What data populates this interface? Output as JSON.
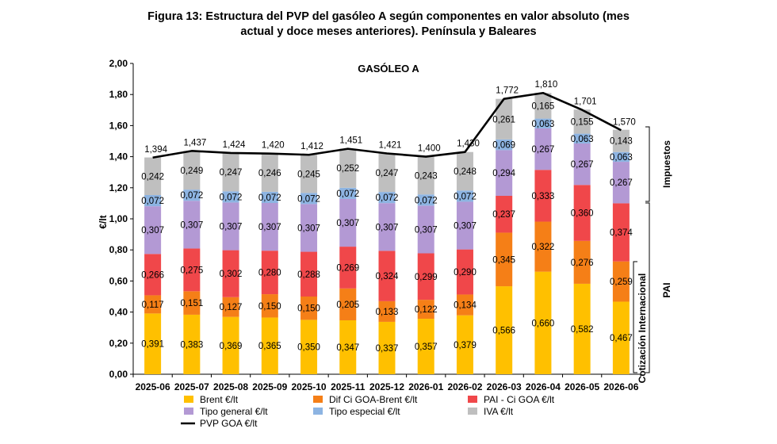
{
  "page_title_line1": "Figura 13: Estructura del PVP del gasóleo A según componentes en valor absoluto (mes",
  "page_title_line2": "actual y doce meses anteriores). Península y Baleares",
  "chart_data": {
    "type": "bar",
    "stacked": true,
    "title": "GASÓLEO A",
    "ylabel": "€/lt",
    "ylim": [
      0,
      2.0
    ],
    "ytick_step": 0.2,
    "grid": false,
    "legend_position": "bottom",
    "side_labels": {
      "upper": "Impuestos",
      "lower": "PAI",
      "inner": "Cotización Internacional"
    },
    "categories": [
      "2025-06",
      "2025-07",
      "2025-08",
      "2025-09",
      "2025-10",
      "2025-11",
      "2025-12",
      "2026-01",
      "2026-02",
      "2026-03",
      "2026-04",
      "2026-05",
      "2026-06"
    ],
    "series": [
      {
        "name": "Brent €/lt",
        "color": "#FFC000",
        "values": [
          0.391,
          0.383,
          0.369,
          0.365,
          0.35,
          0.347,
          0.337,
          0.357,
          0.379,
          0.566,
          0.66,
          0.582,
          0.467
        ],
        "labels": [
          "0,391",
          "0,383",
          "0,369",
          "0,365",
          "0,350",
          "0,347",
          "0,337",
          "0,357",
          "0,379",
          "0,566",
          "0,660",
          "0,582",
          "0,467"
        ]
      },
      {
        "name": "Dif Ci GOA-Brent €/lt",
        "color": "#F57F17",
        "values": [
          0.117,
          0.151,
          0.127,
          0.15,
          0.15,
          0.205,
          0.133,
          0.122,
          0.134,
          0.345,
          0.322,
          0.276,
          0.259
        ],
        "labels": [
          "0,117",
          "0,151",
          "0,127",
          "0,150",
          "0,150",
          "0,205",
          "0,133",
          "0,122",
          "0,134",
          "0,345",
          "0,322",
          "0,276",
          "0,259"
        ]
      },
      {
        "name": "PAI - Ci GOA €/lt",
        "color": "#F0474A",
        "values": [
          0.266,
          0.275,
          0.302,
          0.28,
          0.288,
          0.269,
          0.324,
          0.299,
          0.29,
          0.237,
          0.333,
          0.36,
          0.374
        ],
        "labels": [
          "0,266",
          "0,275",
          "0,302",
          "0,280",
          "0,288",
          "0,269",
          "0,324",
          "0,299",
          "0,290",
          "0,237",
          "0,333",
          "0,360",
          "0,374"
        ]
      },
      {
        "name": "Tipo general €/lt",
        "color": "#B399D4",
        "values": [
          0.307,
          0.307,
          0.307,
          0.307,
          0.307,
          0.307,
          0.307,
          0.307,
          0.307,
          0.294,
          0.267,
          0.267,
          0.267
        ],
        "labels": [
          "0,307",
          "0,307",
          "0,307",
          "0,307",
          "0,307",
          "0,307",
          "0,307",
          "0,307",
          "0,307",
          "0,294",
          "0,267",
          "0,267",
          "0,267"
        ]
      },
      {
        "name": "Tipo especial €/lt",
        "color": "#8DB4E2",
        "values": [
          0.072,
          0.072,
          0.072,
          0.072,
          0.072,
          0.072,
          0.072,
          0.072,
          0.072,
          0.069,
          0.063,
          0.063,
          0.063
        ],
        "labels": [
          "0,072",
          "0,072",
          "0,072",
          "0,072",
          "0,072",
          "0,072",
          "0,072",
          "0,072",
          "0,072",
          "0,069",
          "0,063",
          "0,063",
          "0,063"
        ]
      },
      {
        "name": "IVA €/lt",
        "color": "#BFBFBF",
        "values": [
          0.242,
          0.249,
          0.247,
          0.246,
          0.245,
          0.252,
          0.247,
          0.243,
          0.248,
          0.261,
          0.165,
          0.155,
          0.143
        ],
        "labels": [
          "0,242",
          "0,249",
          "0,247",
          "0,246",
          "0,245",
          "0,252",
          "0,247",
          "0,243",
          "0,248",
          "0,261",
          "0,165",
          "0,155",
          "0,143"
        ]
      }
    ],
    "line": {
      "name": "PVP GOA €/lt",
      "color": "#000000",
      "values": [
        1.394,
        1.437,
        1.424,
        1.42,
        1.412,
        1.451,
        1.421,
        1.4,
        1.43,
        1.772,
        1.81,
        1.701,
        1.57
      ],
      "labels": [
        "1,394",
        "1,437",
        "1,424",
        "1,420",
        "1,412",
        "1,451",
        "1,421",
        "1,400",
        "1,430",
        "1,772",
        "1,810",
        "1,701",
        "1,570"
      ]
    },
    "ytick_labels": [
      "0,00",
      "0,20",
      "0,40",
      "0,60",
      "0,80",
      "1,00",
      "1,20",
      "1,40",
      "1,60",
      "1,80",
      "2,00"
    ]
  }
}
